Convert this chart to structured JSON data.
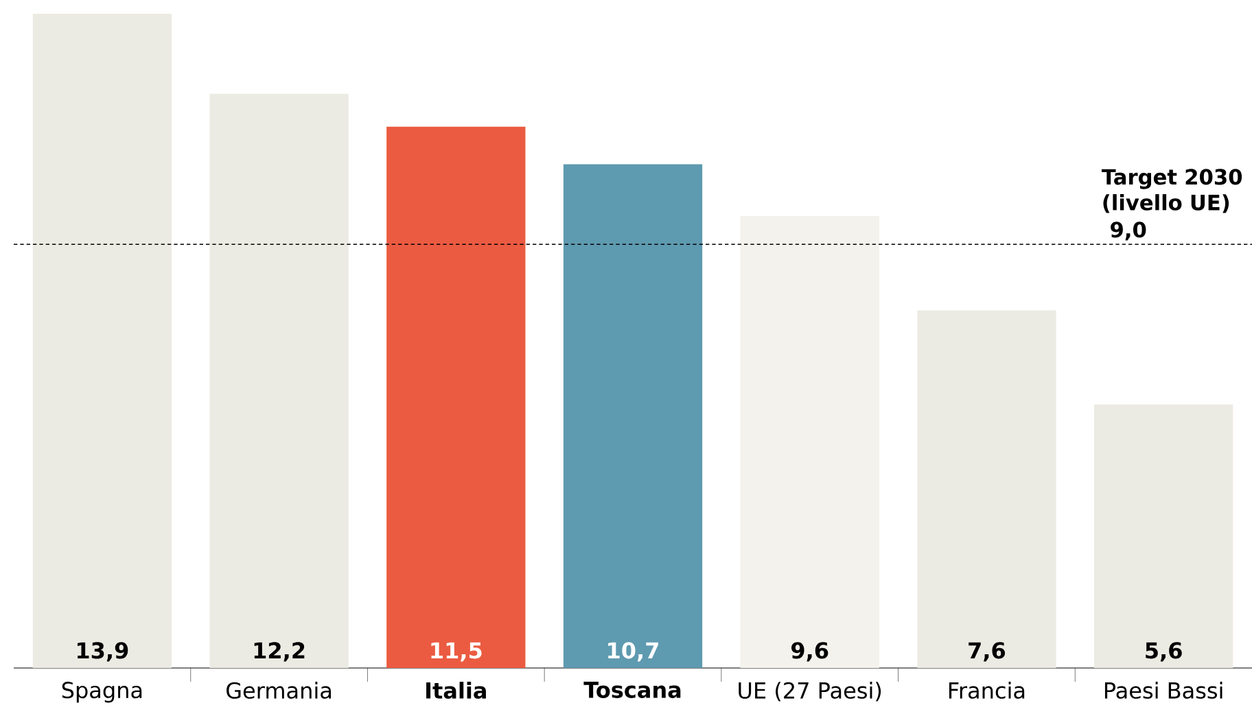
{
  "chart_data": {
    "type": "bar",
    "categories": [
      "Spagna",
      "Germania",
      "**Italia**",
      "**Toscana**",
      "UE (27 Paesi)",
      "Francia",
      "Paesi Bassi"
    ],
    "values": [
      13.9,
      12.2,
      11.5,
      10.7,
      9.6,
      7.6,
      5.6
    ],
    "colors": [
      "#ecebe3",
      "#ecebe3",
      "#eb5b41",
      "#5e9ab0",
      "#f3f2ec",
      "#ecebe3",
      "#ecebe3"
    ],
    "value_labels": [
      "13,9",
      "12,2",
      "11,5",
      "10,7",
      "9,6",
      "7,6",
      "5,6"
    ],
    "ref_lines": [
      {
        "axis": "y",
        "value": 9.0,
        "label": "Target 2030 (livello UE)",
        "color": "#000000",
        "line_style": "dashed"
      }
    ],
    "annotations": [
      {
        "text": "9,0",
        "y": 9.0
      }
    ]
  }
}
